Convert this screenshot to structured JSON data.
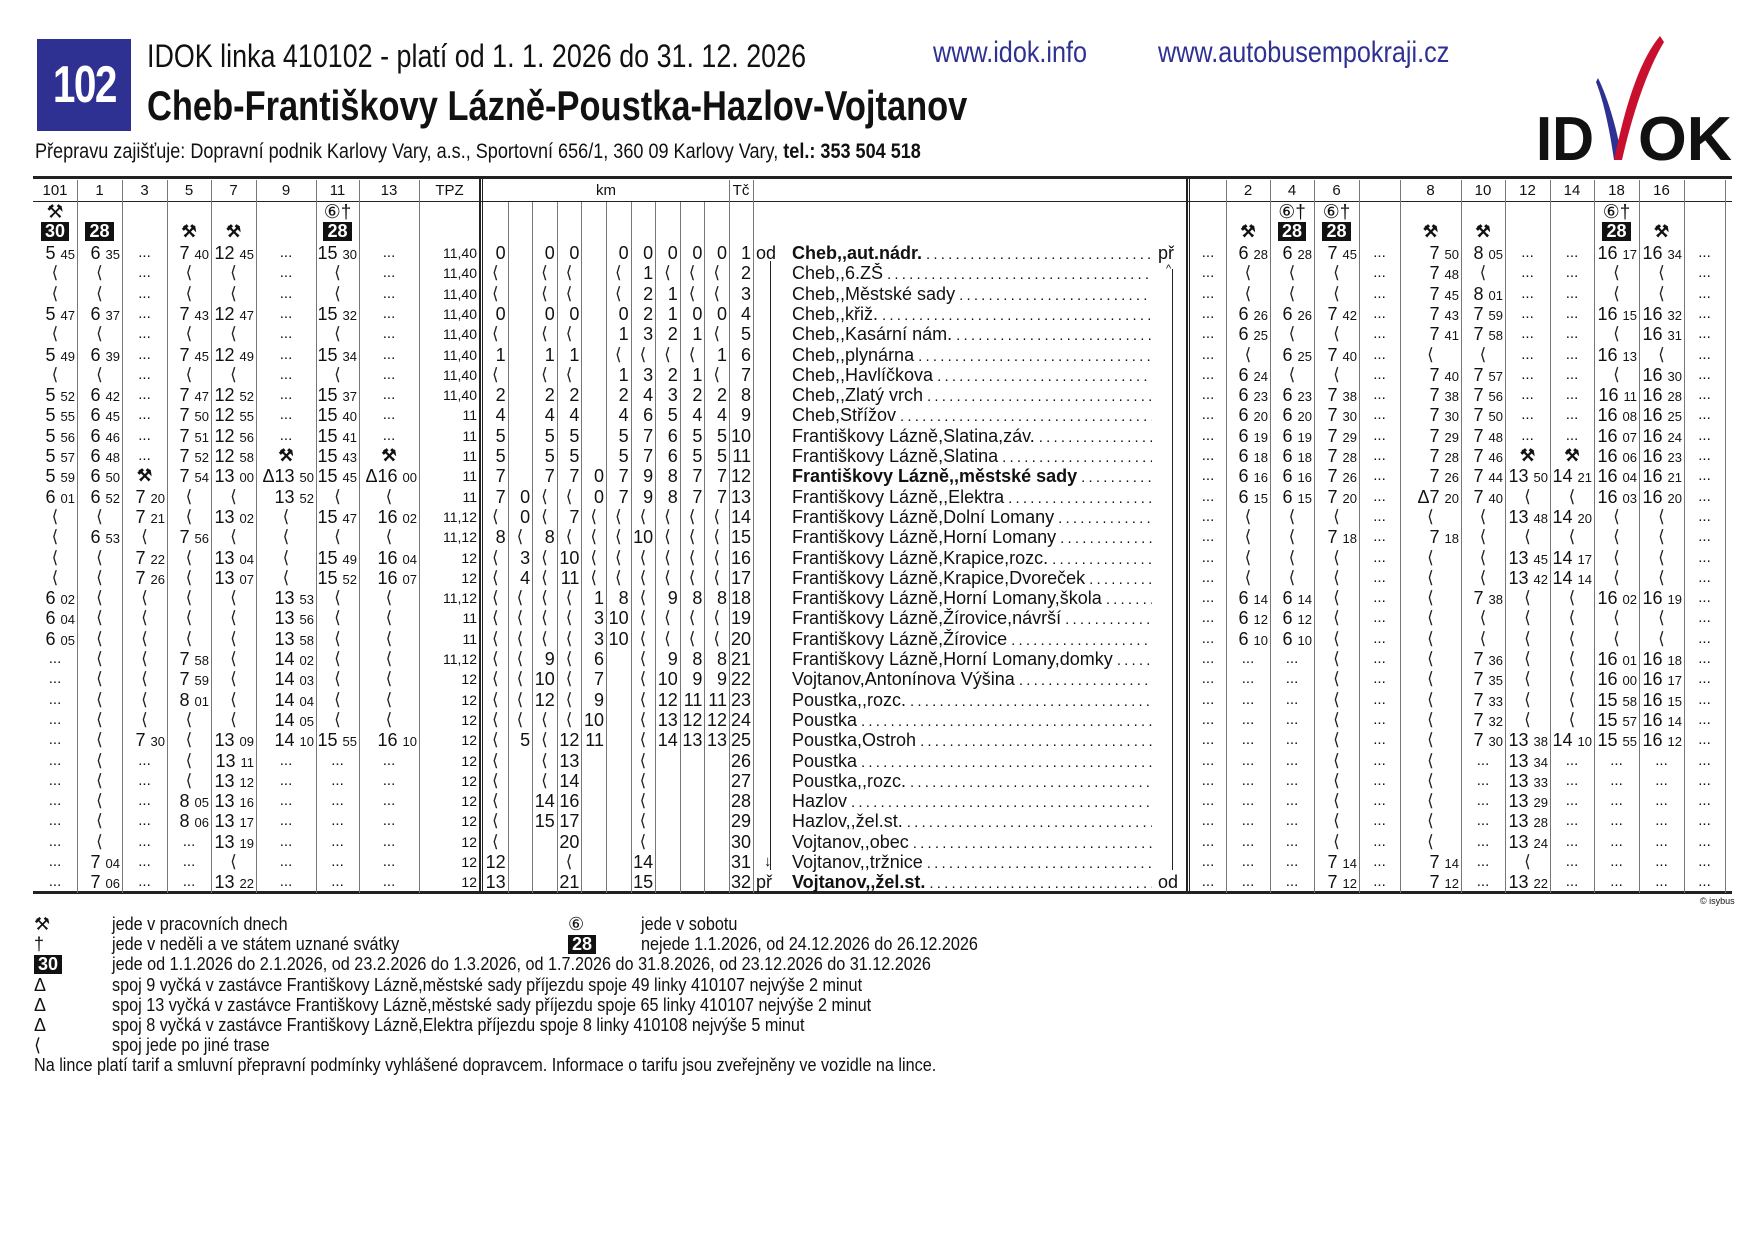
{
  "header": {
    "line_number": "102",
    "title": "IDOK linka 410102 - platí od 1. 1. 2026 do 31. 12. 2026",
    "route": "Cheb-Františkovy Lázně-Poustka-Hazlov-Vojtanov",
    "operator_text": "Přepravu zajišťuje: Dopravní podnik Karlovy Vary, a.s., Sportovní 656/1, 360 09 Karlovy Vary, ",
    "operator_phone": "tel.: 353 504 518",
    "links": [
      "www.idok.info",
      "www.autobusempokraji.cz"
    ],
    "logo_text": "IDOK",
    "colors": {
      "badge": "#2e3192",
      "logo_blue": "#2e3192",
      "logo_red": "#c8102e",
      "link": "#2e3192"
    }
  },
  "columns": {
    "tpz": "TPZ",
    "km": "km",
    "tc": "Tč"
  },
  "stops": [
    {
      "tc": "1",
      "name": "Cheb,,aut.nádr.",
      "bold": true,
      "left": "od",
      "right": "př"
    },
    {
      "tc": "2",
      "name": "Cheb,,6.ZŠ"
    },
    {
      "tc": "3",
      "name": "Cheb,,Městské sady"
    },
    {
      "tc": "4",
      "name": "Cheb,,křiž."
    },
    {
      "tc": "5",
      "name": "Cheb,,Kasární nám."
    },
    {
      "tc": "6",
      "name": "Cheb,,plynárna"
    },
    {
      "tc": "7",
      "name": "Cheb,,Havlíčkova"
    },
    {
      "tc": "8",
      "name": "Cheb,,Zlatý vrch"
    },
    {
      "tc": "9",
      "name": "Cheb,Střížov"
    },
    {
      "tc": "10",
      "name": "Františkovy Lázně,Slatina,záv."
    },
    {
      "tc": "11",
      "name": "Františkovy Lázně,Slatina"
    },
    {
      "tc": "12",
      "name": "Františkovy Lázně,,městské sady",
      "bold": true
    },
    {
      "tc": "13",
      "name": "Františkovy Lázně,,Elektra"
    },
    {
      "tc": "14",
      "name": "Františkovy Lázně,Dolní Lomany"
    },
    {
      "tc": "15",
      "name": "Františkovy Lázně,Horní Lomany"
    },
    {
      "tc": "16",
      "name": "Františkovy Lázně,Krapice,rozc."
    },
    {
      "tc": "17",
      "name": "Františkovy Lázně,Krapice,Dvoreček"
    },
    {
      "tc": "18",
      "name": "Františkovy Lázně,Horní Lomany,škola"
    },
    {
      "tc": "19",
      "name": "Františkovy Lázně,Žírovice,návrší"
    },
    {
      "tc": "20",
      "name": "Františkovy Lázně,Žírovice"
    },
    {
      "tc": "21",
      "name": "Františkovy Lázně,Horní Lomany,domky"
    },
    {
      "tc": "22",
      "name": "Vojtanov,Antonínova Výšina"
    },
    {
      "tc": "23",
      "name": "Poustka,,rozc."
    },
    {
      "tc": "24",
      "name": "Poustka"
    },
    {
      "tc": "25",
      "name": "Poustka,Ostroh"
    },
    {
      "tc": "26",
      "name": "Poustka"
    },
    {
      "tc": "27",
      "name": "Poustka,,rozc."
    },
    {
      "tc": "28",
      "name": "Hazlov"
    },
    {
      "tc": "29",
      "name": "Hazlov,,žel.st."
    },
    {
      "tc": "30",
      "name": "Vojtanov,,obec"
    },
    {
      "tc": "31",
      "name": "Vojtanov,,tržnice",
      "left_arrow": "↓"
    },
    {
      "tc": "32",
      "name": "Vojtanov,,žel.st.",
      "bold": true,
      "left": "př",
      "right": "od"
    }
  ],
  "outbound": [
    {
      "number": "101",
      "mark1": "⚒",
      "mark2": "30",
      "mark2_box": true,
      "times": [
        "5 45",
        "⟨",
        "⟨",
        "5 47",
        "⟨",
        "5 49",
        "⟨",
        "5 52",
        "5 55",
        "5 56",
        "5 57",
        "5 59",
        "6 01",
        "⟨",
        "⟨",
        "⟨",
        "⟨",
        "6 02",
        "6 04",
        "6 05",
        "...",
        "...",
        "...",
        "...",
        "...",
        "...",
        "...",
        "...",
        "...",
        "...",
        "...",
        "..."
      ]
    },
    {
      "number": "1",
      "mark1": "",
      "mark2": "28",
      "mark2_box": true,
      "times": [
        "6 35",
        "⟨",
        "⟨",
        "6 37",
        "⟨",
        "6 39",
        "⟨",
        "6 42",
        "6 45",
        "6 46",
        "6 48",
        "6 50",
        "6 52",
        "⟨",
        "6 53",
        "⟨",
        "⟨",
        "⟨",
        "⟨",
        "⟨",
        "⟨",
        "⟨",
        "⟨",
        "⟨",
        "⟨",
        "⟨",
        "⟨",
        "⟨",
        "⟨",
        "⟨",
        "7 04",
        "7 06"
      ]
    },
    {
      "number": "3",
      "mark1": "",
      "mark2": "",
      "times": [
        "...",
        "...",
        "...",
        "...",
        "...",
        "...",
        "...",
        "...",
        "...",
        "...",
        "...",
        "⚒",
        "7 20",
        "7 21",
        "⟨",
        "7 22",
        "7 26",
        "⟨",
        "⟨",
        "⟨",
        "⟨",
        "⟨",
        "⟨",
        "⟨",
        "7 30",
        "...",
        "...",
        "...",
        "...",
        "...",
        "...",
        "..."
      ]
    },
    {
      "number": "5",
      "mark1": "",
      "mark2": "⚒",
      "times": [
        "7 40",
        "⟨",
        "⟨",
        "7 43",
        "⟨",
        "7 45",
        "⟨",
        "7 47",
        "7 50",
        "7 51",
        "7 52",
        "7 54",
        "⟨",
        "⟨",
        "7 56",
        "⟨",
        "⟨",
        "⟨",
        "⟨",
        "⟨",
        "7 58",
        "7 59",
        "8 01",
        "⟨",
        "⟨",
        "⟨",
        "⟨",
        "8 05",
        "8 06",
        "...",
        "...",
        "..."
      ]
    },
    {
      "number": "7",
      "mark1": "",
      "mark2": "⚒",
      "times": [
        "12 45",
        "⟨",
        "⟨",
        "12 47",
        "⟨",
        "12 49",
        "⟨",
        "12 52",
        "12 55",
        "12 56",
        "12 58",
        "13 00",
        "⟨",
        "13 02",
        "⟨",
        "13 04",
        "13 07",
        "⟨",
        "⟨",
        "⟨",
        "⟨",
        "⟨",
        "⟨",
        "⟨",
        "13 09",
        "13 11",
        "13 12",
        "13 16",
        "13 17",
        "13 19",
        "⟨",
        "13 22"
      ]
    },
    {
      "number": "9",
      "mark1": "",
      "mark2": "",
      "times": [
        "...",
        "...",
        "...",
        "...",
        "...",
        "...",
        "...",
        "...",
        "...",
        "...",
        "⚒",
        "Δ13 50",
        "13 52",
        "⟨",
        "⟨",
        "⟨",
        "⟨",
        "13 53",
        "13 56",
        "13 58",
        "14 02",
        "14 03",
        "14 04",
        "14 05",
        "14 10",
        "...",
        "...",
        "...",
        "...",
        "...",
        "...",
        "..."
      ]
    },
    {
      "number": "11",
      "mark1": "⑥†",
      "mark2": "28",
      "mark2_box": true,
      "times": [
        "15 30",
        "⟨",
        "⟨",
        "15 32",
        "⟨",
        "15 34",
        "⟨",
        "15 37",
        "15 40",
        "15 41",
        "15 43",
        "15 45",
        "⟨",
        "15 47",
        "⟨",
        "15 49",
        "15 52",
        "⟨",
        "⟨",
        "⟨",
        "⟨",
        "⟨",
        "⟨",
        "⟨",
        "15 55",
        "...",
        "...",
        "...",
        "...",
        "...",
        "...",
        "..."
      ]
    },
    {
      "number": "13",
      "mark1": "",
      "mark2": "",
      "times": [
        "...",
        "...",
        "...",
        "...",
        "...",
        "...",
        "...",
        "...",
        "...",
        "...",
        "⚒",
        "Δ16 00",
        "⟨",
        "16 02",
        "⟨",
        "16 04",
        "16 07",
        "⟨",
        "⟨",
        "⟨",
        "⟨",
        "⟨",
        "⟨",
        "⟨",
        "16 10",
        "...",
        "...",
        "...",
        "...",
        "...",
        "...",
        "..."
      ]
    }
  ],
  "tpz": [
    "11,40",
    "11,40",
    "11,40",
    "11,40",
    "11,40",
    "11,40",
    "11,40",
    "11,40",
    "11",
    "11",
    "11",
    "11",
    "11",
    "11,12",
    "11,12",
    "12",
    "12",
    "11,12",
    "11",
    "11",
    "11,12",
    "12",
    "12",
    "12",
    "12",
    "12",
    "12",
    "12",
    "12",
    "12",
    "12",
    "12"
  ],
  "km": [
    [
      "0",
      "⟨",
      "⟨",
      "0",
      "⟨",
      "1",
      "⟨",
      "2",
      "4",
      "5",
      "5",
      "7",
      "7",
      "⟨",
      "8",
      "⟨",
      "⟨",
      "⟨",
      "⟨",
      "⟨",
      "⟨",
      "⟨",
      "⟨",
      "⟨",
      "⟨",
      "⟨",
      "⟨",
      "⟨",
      "⟨",
      "⟨",
      "12",
      "13"
    ],
    [
      "",
      "",
      "",
      "",
      "",
      "",
      "",
      "",
      "",
      "",
      "",
      "",
      "0",
      "0",
      "⟨",
      "3",
      "4",
      "⟨",
      "⟨",
      "⟨",
      "⟨",
      "⟨",
      "⟨",
      "⟨",
      "5",
      "",
      "",
      "",
      "",
      "",
      "",
      ""
    ],
    [
      "0",
      "⟨",
      "⟨",
      "0",
      "⟨",
      "1",
      "⟨",
      "2",
      "4",
      "5",
      "5",
      "7",
      "⟨",
      "⟨",
      "8",
      "⟨",
      "⟨",
      "⟨",
      "⟨",
      "⟨",
      "9",
      "10",
      "12",
      "⟨",
      "⟨",
      "⟨",
      "⟨",
      "14",
      "15",
      "",
      "",
      ""
    ],
    [
      "0",
      "⟨",
      "⟨",
      "0",
      "⟨",
      "1",
      "⟨",
      "2",
      "4",
      "5",
      "5",
      "7",
      "⟨",
      "7",
      "⟨",
      "10",
      "11",
      "⟨",
      "⟨",
      "⟨",
      "⟨",
      "⟨",
      "⟨",
      "⟨",
      "12",
      "13",
      "14",
      "16",
      "17",
      "20",
      "⟨",
      "21"
    ],
    [
      "",
      "",
      "",
      "",
      "",
      "",
      "",
      "",
      "",
      "",
      "",
      "0",
      "0",
      "⟨",
      "⟨",
      "⟨",
      "⟨",
      "1",
      "3",
      "3",
      "6",
      "7",
      "9",
      "10",
      "11",
      "",
      "",
      "",
      "",
      "",
      "",
      ""
    ],
    [
      "0",
      "⟨",
      "⟨",
      "0",
      "1",
      "⟨",
      "1",
      "2",
      "4",
      "5",
      "5",
      "7",
      "7",
      "⟨",
      "⟨",
      "⟨",
      "⟨",
      "8",
      "10",
      "10",
      "",
      "",
      "",
      "",
      "",
      "",
      "",
      "",
      "",
      "",
      "",
      ""
    ],
    [
      "0",
      "1",
      "2",
      "2",
      "3",
      "⟨",
      "3",
      "4",
      "6",
      "7",
      "7",
      "9",
      "9",
      "⟨",
      "10",
      "⟨",
      "⟨",
      "⟨",
      "⟨",
      "⟨",
      "⟨",
      "⟨",
      "⟨",
      "⟨",
      "⟨",
      "⟨",
      "⟨",
      "⟨",
      "⟨",
      "⟨",
      "14",
      "15"
    ],
    [
      "0",
      "⟨",
      "1",
      "1",
      "2",
      "⟨",
      "2",
      "3",
      "5",
      "6",
      "6",
      "8",
      "8",
      "⟨",
      "⟨",
      "⟨",
      "⟨",
      "9",
      "⟨",
      "⟨",
      "9",
      "10",
      "12",
      "13",
      "14",
      "",
      "",
      "",
      "",
      "",
      "",
      ""
    ],
    [
      "0",
      "⟨",
      "⟨",
      "0",
      "1",
      "⟨",
      "1",
      "2",
      "4",
      "5",
      "5",
      "7",
      "7",
      "⟨",
      "⟨",
      "⟨",
      "⟨",
      "8",
      "⟨",
      "⟨",
      "8",
      "9",
      "11",
      "12",
      "13",
      "",
      "",
      "",
      "",
      "",
      "",
      ""
    ],
    [
      "0",
      "⟨",
      "⟨",
      "0",
      "⟨",
      "1",
      "⟨",
      "2",
      "4",
      "5",
      "5",
      "7",
      "7",
      "⟨",
      "⟨",
      "⟨",
      "⟨",
      "8",
      "⟨",
      "⟨",
      "8",
      "9",
      "11",
      "12",
      "13",
      "",
      "",
      "",
      "",
      "",
      "",
      ""
    ]
  ],
  "inbound": [
    {
      "number": "",
      "mark1": "",
      "mark2": "",
      "times": [
        "...",
        "...",
        "...",
        "...",
        "...",
        "...",
        "...",
        "...",
        "...",
        "...",
        "...",
        "...",
        "...",
        "...",
        "...",
        "...",
        "...",
        "...",
        "...",
        "...",
        "...",
        "...",
        "...",
        "...",
        "...",
        "...",
        "...",
        "...",
        "...",
        "...",
        "...",
        "..."
      ]
    },
    {
      "number": "2",
      "mark1": "",
      "mark2": "⚒",
      "times": [
        "6 28",
        "⟨",
        "⟨",
        "6 26",
        "6 25",
        "⟨",
        "6 24",
        "6 23",
        "6 20",
        "6 19",
        "6 18",
        "6 16",
        "6 15",
        "⟨",
        "⟨",
        "⟨",
        "⟨",
        "6 14",
        "6 12",
        "6 10",
        "...",
        "...",
        "...",
        "...",
        "...",
        "...",
        "...",
        "...",
        "...",
        "...",
        "...",
        "..."
      ]
    },
    {
      "number": "4",
      "mark1": "⑥†",
      "mark2": "28",
      "mark2_box": true,
      "times": [
        "6 28",
        "⟨",
        "⟨",
        "6 26",
        "⟨",
        "6 25",
        "⟨",
        "6 23",
        "6 20",
        "6 19",
        "6 18",
        "6 16",
        "6 15",
        "⟨",
        "⟨",
        "⟨",
        "⟨",
        "6 14",
        "6 12",
        "6 10",
        "...",
        "...",
        "...",
        "...",
        "...",
        "...",
        "...",
        "...",
        "...",
        "...",
        "...",
        "..."
      ]
    },
    {
      "number": "6",
      "mark1": "⑥†",
      "mark2": "28",
      "mark2_box": true,
      "times": [
        "7 45",
        "⟨",
        "⟨",
        "7 42",
        "⟨",
        "7 40",
        "⟨",
        "7 38",
        "7 30",
        "7 29",
        "7 28",
        "7 26",
        "7 20",
        "⟨",
        "7 18",
        "⟨",
        "⟨",
        "⟨",
        "⟨",
        "⟨",
        "⟨",
        "⟨",
        "⟨",
        "⟨",
        "⟨",
        "⟨",
        "⟨",
        "⟨",
        "⟨",
        "⟨",
        "7 14",
        "7 12"
      ]
    },
    {
      "number": "",
      "mark1": "",
      "mark2": "",
      "times": [
        "...",
        "...",
        "...",
        "...",
        "...",
        "...",
        "...",
        "...",
        "...",
        "...",
        "...",
        "...",
        "...",
        "...",
        "...",
        "...",
        "...",
        "...",
        "...",
        "...",
        "...",
        "...",
        "...",
        "...",
        "...",
        "...",
        "...",
        "...",
        "...",
        "...",
        "...",
        "..."
      ]
    },
    {
      "number": "8",
      "mark1": "",
      "mark2": "⚒",
      "times": [
        "7 50",
        "7 48",
        "7 45",
        "7 43",
        "7 41",
        "⟨",
        "7 40",
        "7 38",
        "7 30",
        "7 29",
        "7 28",
        "7 26",
        "Δ7 20",
        "⟨",
        "7 18",
        "⟨",
        "⟨",
        "⟨",
        "⟨",
        "⟨",
        "⟨",
        "⟨",
        "⟨",
        "⟨",
        "⟨",
        "⟨",
        "⟨",
        "⟨",
        "⟨",
        "⟨",
        "7 14",
        "7 12"
      ]
    },
    {
      "number": "10",
      "mark1": "",
      "mark2": "⚒",
      "times": [
        "8 05",
        "⟨",
        "8 01",
        "7 59",
        "7 58",
        "⟨",
        "7 57",
        "7 56",
        "7 50",
        "7 48",
        "7 46",
        "7 44",
        "7 40",
        "⟨",
        "⟨",
        "⟨",
        "⟨",
        "7 38",
        "⟨",
        "⟨",
        "7 36",
        "7 35",
        "7 33",
        "7 32",
        "7 30",
        "...",
        "...",
        "...",
        "...",
        "...",
        "...",
        "..."
      ]
    },
    {
      "number": "12",
      "mark1": "",
      "mark2": "",
      "times": [
        "...",
        "...",
        "...",
        "...",
        "...",
        "...",
        "...",
        "...",
        "...",
        "...",
        "⚒",
        "13 50",
        "⟨",
        "13 48",
        "⟨",
        "13 45",
        "13 42",
        "⟨",
        "⟨",
        "⟨",
        "⟨",
        "⟨",
        "⟨",
        "⟨",
        "13 38",
        "13 34",
        "13 33",
        "13 29",
        "13 28",
        "13 24",
        "⟨",
        "13 22"
      ]
    },
    {
      "number": "14",
      "mark1": "",
      "mark2": "",
      "times": [
        "...",
        "...",
        "...",
        "...",
        "...",
        "...",
        "...",
        "...",
        "...",
        "...",
        "⚒",
        "14 21",
        "⟨",
        "14 20",
        "⟨",
        "14 17",
        "14 14",
        "⟨",
        "⟨",
        "⟨",
        "⟨",
        "⟨",
        "⟨",
        "⟨",
        "14 10",
        "...",
        "...",
        "...",
        "...",
        "...",
        "...",
        "..."
      ]
    },
    {
      "number": "18",
      "mark1": "⑥†",
      "mark2": "28",
      "mark2_box": true,
      "times": [
        "16 17",
        "⟨",
        "⟨",
        "16 15",
        "⟨",
        "16 13",
        "⟨",
        "16 11",
        "16 08",
        "16 07",
        "16 06",
        "16 04",
        "16 03",
        "⟨",
        "⟨",
        "⟨",
        "⟨",
        "16 02",
        "⟨",
        "⟨",
        "16 01",
        "16 00",
        "15 58",
        "15 57",
        "15 55",
        "...",
        "...",
        "...",
        "...",
        "...",
        "...",
        "..."
      ]
    },
    {
      "number": "16",
      "mark1": "",
      "mark2": "⚒",
      "times": [
        "16 34",
        "⟨",
        "⟨",
        "16 32",
        "16 31",
        "⟨",
        "16 30",
        "16 28",
        "16 25",
        "16 24",
        "16 23",
        "16 21",
        "16 20",
        "⟨",
        "⟨",
        "⟨",
        "⟨",
        "16 19",
        "⟨",
        "⟨",
        "16 18",
        "16 17",
        "16 15",
        "16 14",
        "16 12",
        "...",
        "...",
        "...",
        "...",
        "...",
        "...",
        "..."
      ]
    },
    {
      "number": "",
      "mark1": "",
      "mark2": "",
      "times": [
        "...",
        "...",
        "...",
        "...",
        "...",
        "...",
        "...",
        "...",
        "...",
        "...",
        "...",
        "...",
        "...",
        "...",
        "...",
        "...",
        "...",
        "...",
        "...",
        "...",
        "...",
        "...",
        "...",
        "...",
        "...",
        "...",
        "...",
        "...",
        "...",
        "...",
        "...",
        "..."
      ]
    }
  ],
  "copyright": "© isybus",
  "legend": [
    {
      "symbol": "⚒",
      "text": "jede v pracovních dnech"
    },
    {
      "symbol": "†",
      "text": "jede v neděli a ve státem uznané svátky"
    },
    {
      "symbol": "30",
      "box": true,
      "text": "jede od 1.1.2026 do 2.1.2026, od 23.2.2026 do 1.3.2026, od 1.7.2026 do 31.8.2026, od 23.12.2026 do 31.12.2026"
    },
    {
      "symbol": "Δ",
      "text": "spoj 9 vyčká v zastávce Františkovy Lázně,městské sady příjezdu spoje 49 linky 410107 nejvýše 2 minut"
    },
    {
      "symbol": "Δ",
      "text": "spoj 13 vyčká v zastávce Františkovy Lázně,městské sady příjezdu spoje 65 linky 410107 nejvýše 2 minut"
    },
    {
      "symbol": "Δ",
      "text": "spoj 8 vyčká v zastávce Františkovy Lázně,Elektra příjezdu spoje 8 linky 410108 nejvýše 5 minut"
    },
    {
      "symbol": "⟨",
      "text": "spoj jede po jiné trase"
    }
  ],
  "legend_right": [
    {
      "symbol": "⑥",
      "text": "jede v sobotu"
    },
    {
      "symbol": "28",
      "box": true,
      "text": "nejede 1.1.2026, od 24.12.2026 do 26.12.2026"
    }
  ],
  "footer_note": "Na lince platí tarif a smluvní přepravní podmínky vyhlášené dopravcem. Informace o tarifu jsou zveřejněny ve vozidle na lince."
}
